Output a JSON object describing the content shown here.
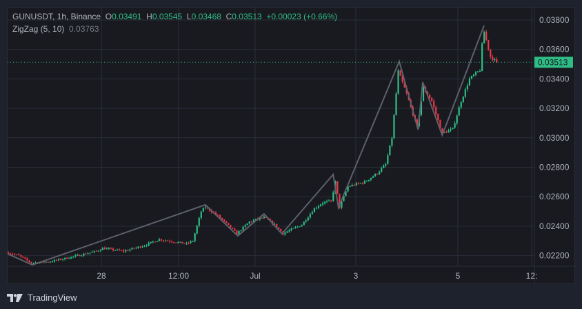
{
  "legend": {
    "symbol": "GUNUSDT, 1h, Binance",
    "open_label": "O",
    "open": "0.03491",
    "high_label": "H",
    "high": "0.03545",
    "low_label": "L",
    "low": "0.03468",
    "close_label": "C",
    "close": "0.03513",
    "change": "+0.00023 (+0.66%)",
    "indicator": "ZigZag (5, 10)",
    "indicator_value": "0.03763"
  },
  "brand": "TradingView",
  "colors": {
    "up": "#2fbd85",
    "down": "#f23645",
    "zigzag": "#5d606b",
    "background": "#181a20",
    "grid": "#2a2e39"
  },
  "chart_data": {
    "type": "candlestick",
    "interval": "1h",
    "ylim": [
      0.0213,
      0.0385
    ],
    "y_ticks": [
      "0.03800",
      "0.03600",
      "0.03400",
      "0.03200",
      "0.03000",
      "0.02800",
      "0.02600",
      "0.02400",
      "0.02200"
    ],
    "x_ticks": [
      "28",
      "12:00",
      "Jul",
      "3",
      "5",
      "12:"
    ],
    "last_price": "0.03513",
    "close_anchors": [
      [
        0,
        0.0222
      ],
      [
        5,
        0.022
      ],
      [
        11,
        0.0215
      ],
      [
        20,
        0.0216
      ],
      [
        30,
        0.0219
      ],
      [
        42,
        0.0223
      ],
      [
        45,
        0.0225
      ],
      [
        55,
        0.0223
      ],
      [
        65,
        0.0227
      ],
      [
        72,
        0.0231
      ],
      [
        85,
        0.0228
      ],
      [
        88,
        0.023
      ],
      [
        92,
        0.025
      ],
      [
        94,
        0.0253
      ],
      [
        100,
        0.0247
      ],
      [
        109,
        0.0235
      ],
      [
        115,
        0.0243
      ],
      [
        122,
        0.0246
      ],
      [
        127,
        0.0241
      ],
      [
        131,
        0.0235
      ],
      [
        140,
        0.0241
      ],
      [
        146,
        0.0252
      ],
      [
        150,
        0.0256
      ],
      [
        154,
        0.0257
      ],
      [
        156,
        0.027
      ],
      [
        158,
        0.0253
      ],
      [
        162,
        0.0267
      ],
      [
        170,
        0.027
      ],
      [
        176,
        0.0276
      ],
      [
        180,
        0.0282
      ],
      [
        183,
        0.03
      ],
      [
        185,
        0.033
      ],
      [
        186,
        0.0345
      ],
      [
        190,
        0.033
      ],
      [
        195,
        0.0307
      ],
      [
        198,
        0.0334
      ],
      [
        202,
        0.0325
      ],
      [
        207,
        0.0303
      ],
      [
        212,
        0.0306
      ],
      [
        216,
        0.0325
      ],
      [
        220,
        0.034
      ],
      [
        225,
        0.0346
      ],
      [
        226,
        0.0363
      ],
      [
        227,
        0.0372
      ],
      [
        230,
        0.0355
      ],
      [
        233,
        0.03513
      ]
    ],
    "zigzag": [
      [
        0,
        0.0221
      ],
      [
        11.5,
        0.02137
      ],
      [
        94,
        0.02545
      ],
      [
        109.5,
        0.02334
      ],
      [
        122,
        0.02484
      ],
      [
        130.5,
        0.02348
      ],
      [
        155,
        0.02751
      ],
      [
        157.5,
        0.02526
      ],
      [
        186.5,
        0.03519
      ],
      [
        195.5,
        0.03055
      ],
      [
        197.7,
        0.03378
      ],
      [
        207,
        0.03018
      ],
      [
        227,
        0.03763
      ]
    ]
  }
}
